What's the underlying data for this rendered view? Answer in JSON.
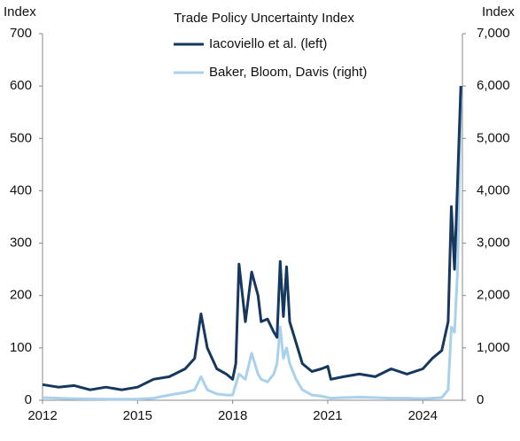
{
  "chart_data": {
    "type": "line",
    "title": "Trade Policy Uncertainty Index",
    "y_label": "Index",
    "y2_label": "Index",
    "x": [
      2012.0,
      2012.5,
      2013.0,
      2013.5,
      2014.0,
      2014.5,
      2015.0,
      2015.5,
      2016.0,
      2016.5,
      2016.8,
      2017.0,
      2017.2,
      2017.5,
      2017.8,
      2018.0,
      2018.1,
      2018.2,
      2018.4,
      2018.6,
      2018.8,
      2018.9,
      2019.1,
      2019.3,
      2019.4,
      2019.5,
      2019.6,
      2019.7,
      2019.8,
      2020.0,
      2020.2,
      2020.5,
      2020.8,
      2021.0,
      2021.1,
      2021.5,
      2022.0,
      2022.5,
      2023.0,
      2023.5,
      2024.0,
      2024.3,
      2024.6,
      2024.8,
      2024.9,
      2025.0,
      2025.1,
      2025.2
    ],
    "series": [
      {
        "name": "Iacoviello et al. (left)",
        "color": "#16375e",
        "values": [
          30,
          25,
          28,
          20,
          25,
          20,
          25,
          40,
          45,
          60,
          80,
          165,
          100,
          60,
          50,
          40,
          70,
          260,
          150,
          245,
          200,
          150,
          155,
          130,
          120,
          265,
          160,
          255,
          150,
          110,
          70,
          55,
          60,
          65,
          40,
          45,
          50,
          45,
          60,
          50,
          60,
          80,
          95,
          150,
          370,
          250,
          420,
          600
        ]
      },
      {
        "name": "Baker, Bloom, Davis (right)",
        "color": "#a9d1ec",
        "axis": "y2",
        "values": [
          50,
          40,
          30,
          25,
          20,
          20,
          20,
          40,
          100,
          150,
          200,
          450,
          200,
          120,
          100,
          100,
          300,
          500,
          400,
          900,
          500,
          400,
          350,
          500,
          700,
          1400,
          800,
          1000,
          700,
          400,
          200,
          100,
          80,
          50,
          40,
          50,
          60,
          50,
          40,
          40,
          30,
          40,
          50,
          200,
          1400,
          1300,
          2500,
          5700
        ]
      }
    ],
    "xlim": [
      2012,
      2025.25
    ],
    "xticks": [
      2012,
      2015,
      2018,
      2021,
      2024
    ],
    "ylim": [
      0,
      700
    ],
    "yticks": [
      0,
      100,
      200,
      300,
      400,
      500,
      600,
      700
    ],
    "y2lim": [
      0,
      7000
    ],
    "y2ticks": [
      0,
      {
        "value": 1000,
        "label": "1,000"
      },
      {
        "value": 2000,
        "label": "2,000"
      },
      {
        "value": 3000,
        "label": "3,000"
      },
      {
        "value": 4000,
        "label": "4,000"
      },
      {
        "value": 5000,
        "label": "5,000"
      },
      {
        "value": 6000,
        "label": "6,000"
      },
      {
        "value": 7000,
        "label": "7,000"
      }
    ]
  }
}
